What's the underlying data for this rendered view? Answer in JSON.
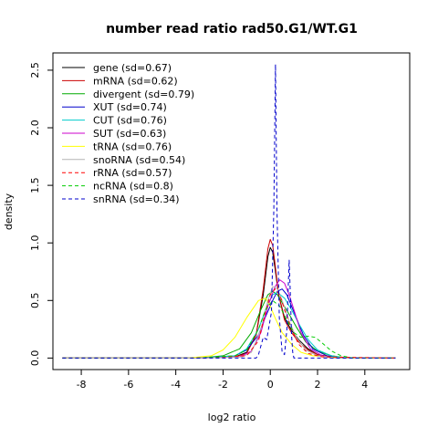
{
  "chart_data": {
    "type": "line",
    "title": "number read ratio rad50.G1/WT.G1",
    "xlabel": "log2 ratio",
    "ylabel": "density",
    "xlim": [
      -9.2,
      5.9
    ],
    "ylim": [
      -0.1,
      2.65
    ],
    "xticks": [
      -8,
      -6,
      -4,
      -2,
      0,
      2,
      4
    ],
    "yticks": [
      0.0,
      0.5,
      1.0,
      1.5,
      2.0,
      2.5
    ],
    "grid": false,
    "legend_position": "top-left",
    "series": [
      {
        "name": "gene (sd=0.67)",
        "color": "#000000",
        "dash": "solid",
        "x": [
          -8.8,
          -3.0,
          -1.5,
          -1.0,
          -0.6,
          -0.3,
          -0.1,
          0.0,
          0.1,
          0.2,
          0.35,
          0.6,
          0.9,
          1.2,
          1.6,
          2.0,
          2.6,
          3.2,
          5.3
        ],
        "y": [
          0.0,
          0.0,
          0.01,
          0.05,
          0.2,
          0.55,
          0.88,
          0.96,
          0.92,
          0.78,
          0.55,
          0.35,
          0.24,
          0.16,
          0.08,
          0.03,
          0.01,
          0.0,
          0.0
        ]
      },
      {
        "name": "mRNA (sd=0.62)",
        "color": "#cc0000",
        "dash": "solid",
        "x": [
          -8.8,
          -3.0,
          -1.5,
          -1.0,
          -0.6,
          -0.3,
          -0.1,
          0.0,
          0.1,
          0.2,
          0.35,
          0.6,
          0.9,
          1.2,
          1.6,
          2.0,
          2.6,
          3.2,
          5.3
        ],
        "y": [
          0.0,
          0.0,
          0.01,
          0.04,
          0.2,
          0.6,
          0.95,
          1.03,
          0.98,
          0.82,
          0.55,
          0.33,
          0.22,
          0.14,
          0.07,
          0.03,
          0.01,
          0.0,
          0.0
        ]
      },
      {
        "name": "divergent (sd=0.79)",
        "color": "#00aa00",
        "dash": "solid",
        "x": [
          -8.8,
          -3.0,
          -2.0,
          -1.3,
          -0.8,
          -0.4,
          -0.1,
          0.1,
          0.3,
          0.5,
          0.8,
          1.1,
          1.5,
          2.0,
          2.6,
          3.3,
          5.3
        ],
        "y": [
          0.0,
          0.0,
          0.02,
          0.08,
          0.22,
          0.42,
          0.55,
          0.58,
          0.55,
          0.48,
          0.38,
          0.27,
          0.14,
          0.06,
          0.02,
          0.0,
          0.0
        ]
      },
      {
        "name": "XUT (sd=0.74)",
        "color": "#0000cc",
        "dash": "solid",
        "x": [
          -8.8,
          -3.0,
          -1.5,
          -1.0,
          -0.5,
          -0.2,
          0.1,
          0.3,
          0.5,
          0.7,
          1.0,
          1.4,
          1.8,
          2.4,
          3.0,
          5.3
        ],
        "y": [
          0.0,
          0.0,
          0.02,
          0.07,
          0.2,
          0.36,
          0.5,
          0.58,
          0.6,
          0.55,
          0.4,
          0.2,
          0.08,
          0.02,
          0.0,
          0.0
        ]
      },
      {
        "name": "CUT (sd=0.76)",
        "color": "#00cccc",
        "dash": "solid",
        "x": [
          -8.8,
          -3.0,
          -1.5,
          -1.0,
          -0.5,
          -0.2,
          0.1,
          0.3,
          0.6,
          0.9,
          1.2,
          1.6,
          2.0,
          2.6,
          3.2,
          5.3
        ],
        "y": [
          0.0,
          0.0,
          0.02,
          0.08,
          0.25,
          0.42,
          0.55,
          0.57,
          0.52,
          0.42,
          0.3,
          0.16,
          0.07,
          0.02,
          0.0,
          0.0
        ]
      },
      {
        "name": "SUT (sd=0.63)",
        "color": "#cc00cc",
        "dash": "solid",
        "x": [
          -8.8,
          -3.0,
          -1.3,
          -0.8,
          -0.4,
          -0.1,
          0.2,
          0.4,
          0.6,
          0.8,
          1.0,
          1.3,
          1.7,
          2.2,
          2.8,
          5.3
        ],
        "y": [
          0.0,
          0.0,
          0.01,
          0.06,
          0.22,
          0.45,
          0.62,
          0.68,
          0.65,
          0.55,
          0.42,
          0.22,
          0.08,
          0.02,
          0.0,
          0.0
        ]
      },
      {
        "name": "tRNA (sd=0.76)",
        "color": "#ffff00",
        "dash": "solid",
        "x": [
          -8.8,
          -3.5,
          -2.5,
          -2.0,
          -1.5,
          -1.0,
          -0.5,
          -0.2,
          0.0,
          0.2,
          0.5,
          0.9,
          1.3,
          1.8,
          2.4,
          3.0,
          5.3
        ],
        "y": [
          0.0,
          0.0,
          0.02,
          0.07,
          0.18,
          0.35,
          0.5,
          0.52,
          0.45,
          0.35,
          0.22,
          0.12,
          0.05,
          0.02,
          0.01,
          0.0,
          0.0
        ]
      },
      {
        "name": "snoRNA (sd=0.54)",
        "color": "#b3b3b3",
        "dash": "solid",
        "x": [
          -8.8,
          -3.0,
          -1.2,
          -0.8,
          -0.4,
          -0.1,
          0.1,
          0.3,
          0.5,
          0.8,
          1.1,
          1.5,
          2.0,
          2.6,
          5.3
        ],
        "y": [
          0.0,
          0.0,
          0.01,
          0.05,
          0.25,
          0.5,
          0.62,
          0.6,
          0.5,
          0.32,
          0.18,
          0.07,
          0.02,
          0.0,
          0.0
        ]
      },
      {
        "name": "rRNA (sd=0.57)",
        "color": "#ff0000",
        "dash": "dashed",
        "x": [
          -8.8,
          -3.0,
          -1.0,
          -0.5,
          -0.2,
          0.0,
          0.2,
          0.4,
          0.6,
          0.9,
          1.2,
          1.6,
          2.2,
          5.3
        ],
        "y": [
          0.0,
          0.0,
          0.02,
          0.15,
          0.4,
          0.55,
          0.6,
          0.55,
          0.42,
          0.25,
          0.12,
          0.04,
          0.01,
          0.0
        ]
      },
      {
        "name": "ncRNA (sd=0.8)",
        "color": "#00cc00",
        "dash": "dashed",
        "x": [
          -8.8,
          -3.0,
          -1.5,
          -1.0,
          -0.5,
          -0.2,
          0.1,
          0.4,
          0.7,
          1.0,
          1.3,
          1.6,
          1.9,
          2.2,
          2.6,
          3.0,
          3.5,
          5.3
        ],
        "y": [
          0.0,
          0.0,
          0.02,
          0.07,
          0.25,
          0.42,
          0.5,
          0.45,
          0.33,
          0.22,
          0.18,
          0.19,
          0.18,
          0.13,
          0.06,
          0.02,
          0.0,
          0.0
        ]
      },
      {
        "name": "snRNA (sd=0.34)",
        "color": "#0000cc",
        "dash": "dashed",
        "x": [
          -8.8,
          -0.6,
          -0.5,
          -0.3,
          -0.15,
          0.05,
          0.15,
          0.22,
          0.28,
          0.38,
          0.5,
          0.6,
          0.7,
          0.75,
          0.8,
          0.85,
          0.9,
          0.95,
          1.0,
          1.1,
          5.3
        ],
        "y": [
          0.0,
          0.0,
          0.03,
          0.18,
          0.16,
          0.4,
          1.3,
          2.55,
          1.3,
          0.35,
          0.05,
          0.03,
          0.25,
          0.55,
          0.85,
          0.55,
          0.2,
          0.05,
          0.0,
          0.0,
          0.0
        ]
      }
    ]
  }
}
